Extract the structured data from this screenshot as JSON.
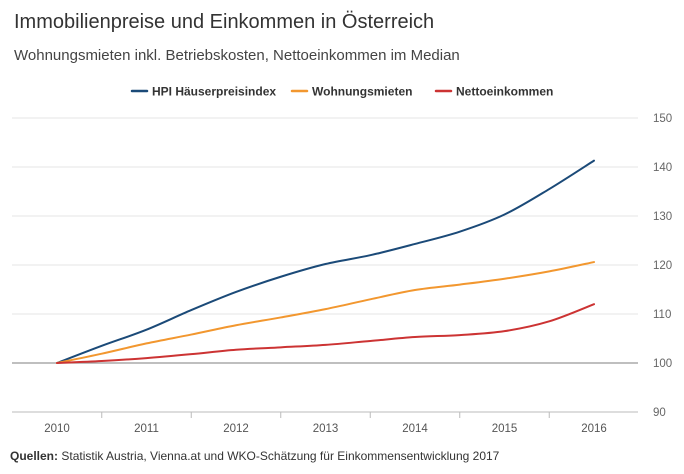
{
  "title": "Immobilienpreise und Einkommen in Österreich",
  "subtitle": "Wohnungsmieten inkl. Betriebskosten, Nettoeinkommen im Median",
  "source": {
    "label": "Quellen:",
    "text": " Statistik Austria, Vienna.at und WKO-Schätzung für Einkommensentwicklung 2017"
  },
  "chart_data": {
    "type": "line",
    "x": [
      2010,
      2011,
      2012,
      2013,
      2014,
      2015,
      2016
    ],
    "xlabel": "",
    "ylabel": "",
    "ylim": [
      90,
      150
    ],
    "yticks": [
      90,
      100,
      110,
      120,
      130,
      140,
      150
    ],
    "grid": true,
    "legend_position": "top",
    "series": [
      {
        "name": "HPI Häuserpreisindex",
        "color": "#1b4a78",
        "x": [
          2010,
          2010.5,
          2011,
          2011.5,
          2012,
          2012.5,
          2013,
          2013.5,
          2014,
          2014.5,
          2015,
          2015.5,
          2016
        ],
        "values": [
          100,
          103.5,
          106.8,
          110.8,
          114.5,
          117.6,
          120.2,
          122.0,
          124.3,
          126.8,
          130.3,
          135.5,
          141.3
        ]
      },
      {
        "name": "Wohnungsmieten",
        "color": "#f2972f",
        "x": [
          2010,
          2010.5,
          2011,
          2011.5,
          2012,
          2012.5,
          2013,
          2013.5,
          2014,
          2014.5,
          2015,
          2015.5,
          2016
        ],
        "values": [
          100,
          101.9,
          104.0,
          105.8,
          107.7,
          109.3,
          111.0,
          113.0,
          114.9,
          116.0,
          117.2,
          118.7,
          120.6
        ]
      },
      {
        "name": "Nettoeinkommen",
        "color": "#cc3333",
        "x": [
          2010,
          2010.5,
          2011,
          2011.5,
          2012,
          2012.5,
          2013,
          2013.5,
          2014,
          2014.5,
          2015,
          2015.5,
          2016
        ],
        "values": [
          100,
          100.4,
          101.0,
          101.8,
          102.7,
          103.2,
          103.7,
          104.5,
          105.3,
          105.7,
          106.5,
          108.5,
          112.0
        ]
      }
    ]
  }
}
